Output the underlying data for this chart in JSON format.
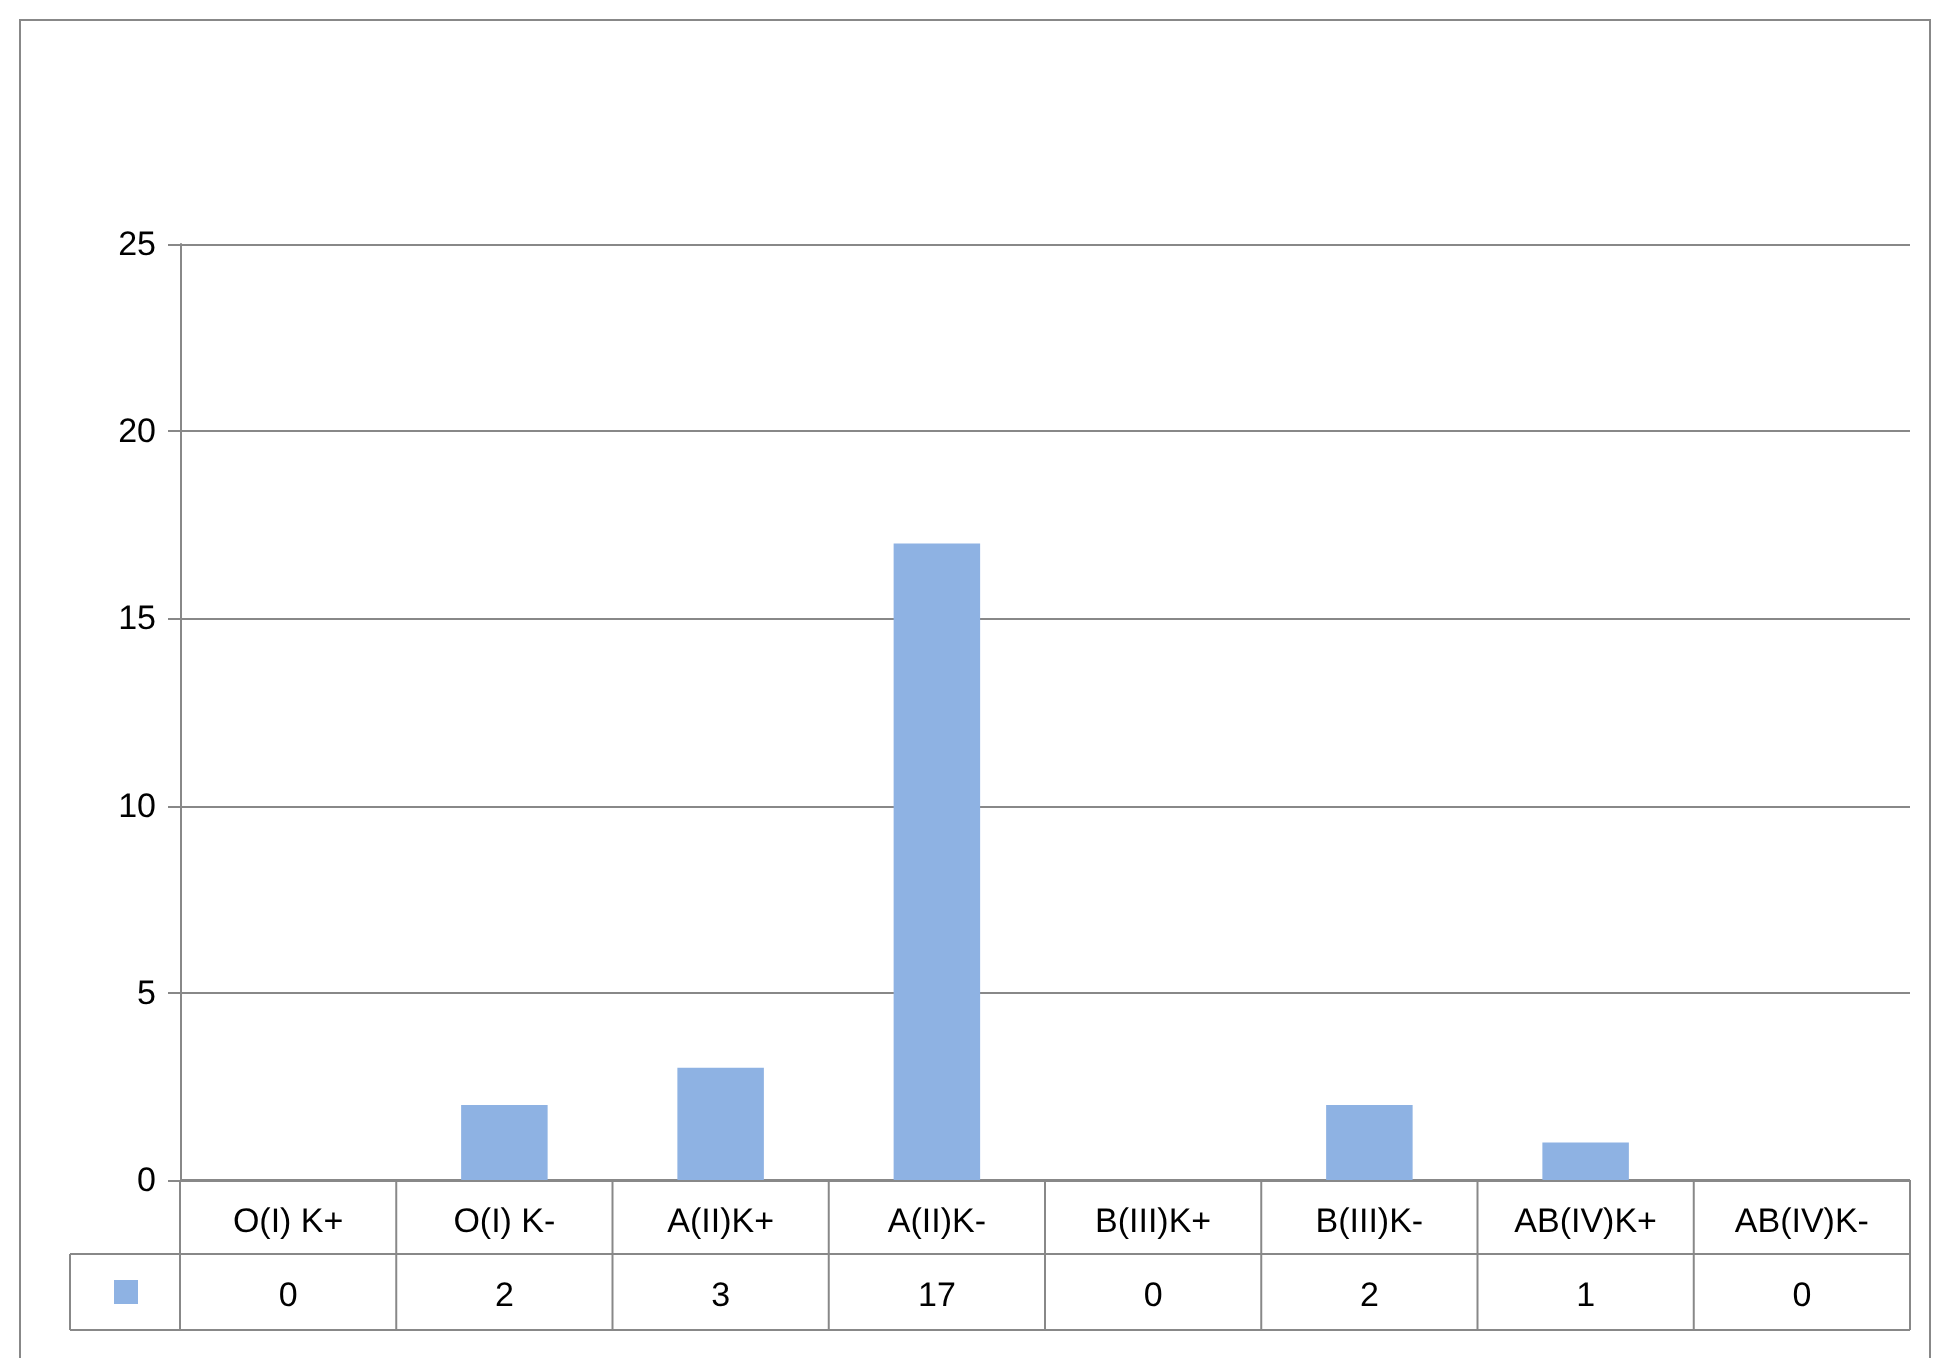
{
  "chart_data": {
    "type": "bar",
    "categories": [
      "O(I) K+",
      "O(I) K-",
      "A(II)K+",
      "A(II)K-",
      "B(III)K+",
      "B(III)K-",
      "AB(IV)K+",
      "AB(IV)K-"
    ],
    "series": [
      {
        "color": "#8eb2e3",
        "values": [
          0,
          2,
          3,
          17,
          0,
          2,
          1,
          0
        ]
      }
    ],
    "ylim": [
      0,
      25
    ],
    "yticks": [
      0,
      5,
      10,
      15,
      20,
      25
    ],
    "grid": "y",
    "data_labels": true
  }
}
